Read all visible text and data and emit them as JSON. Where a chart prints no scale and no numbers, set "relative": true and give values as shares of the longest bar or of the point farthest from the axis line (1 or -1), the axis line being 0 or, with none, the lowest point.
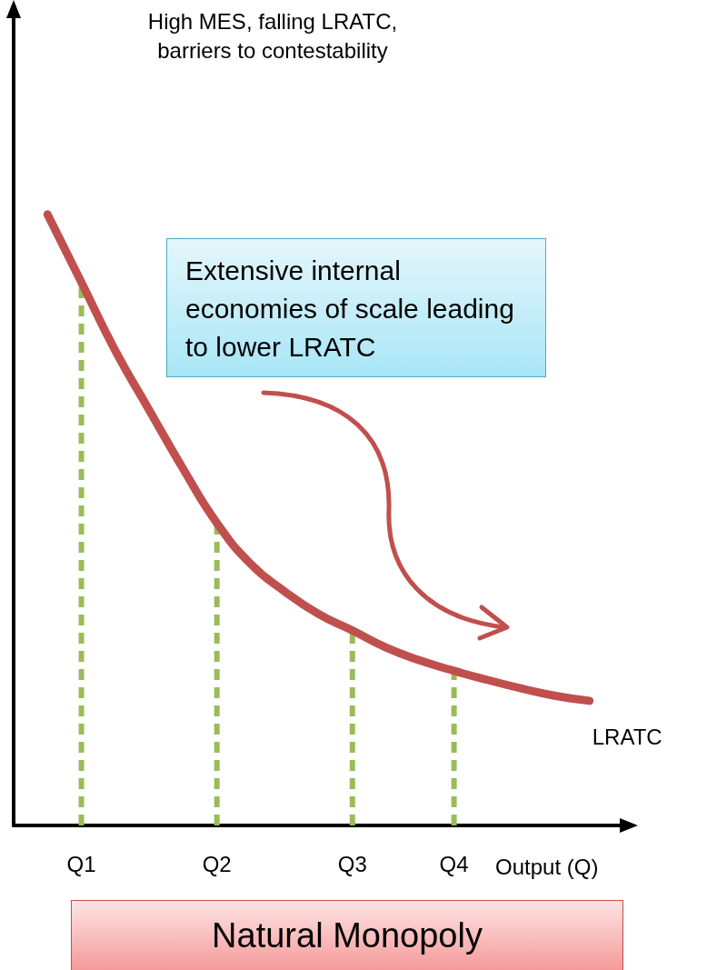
{
  "chart_data": {
    "type": "line",
    "title": "High MES, falling LRATC, barriers to contestability",
    "xlabel": "Output (Q)",
    "relative": true,
    "categories": [
      null,
      null,
      "Q1",
      null,
      null,
      null,
      "Q2",
      null,
      null,
      null,
      "Q3",
      null,
      null,
      "Q4",
      null,
      null,
      null,
      null,
      null
    ],
    "series": [
      {
        "name": "LRATC",
        "color": "#c0504d",
        "values": [
          null,
          1,
          0.889,
          0.777,
          0.68,
          0.584,
          0.495,
          0.428,
          0.383,
          0.346,
          0.319,
          0.291,
          0.27,
          0.253,
          0.238,
          0.224,
          0.212,
          0.204,
          null
        ]
      },
      {
        "color": "#9bbb59",
        "line_style": "dashed",
        "x": [
          "Q1",
          "Q1"
        ],
        "values": [
          0,
          0.889
        ]
      },
      {
        "color": "#9bbb59",
        "line_style": "dashed",
        "x": [
          "Q2",
          "Q2"
        ],
        "values": [
          0,
          0.495
        ]
      },
      {
        "color": "#9bbb59",
        "line_style": "dashed",
        "x": [
          "Q3",
          "Q3"
        ],
        "values": [
          0,
          0.319
        ]
      },
      {
        "color": "#9bbb59",
        "line_style": "dashed",
        "x": [
          "Q4",
          "Q4"
        ],
        "values": [
          0,
          0.253
        ]
      }
    ],
    "annotations": [
      "Extensive internal economies of scale leading to lower LRATC",
      "Natural Monopoly"
    ],
    "marker": "none"
  }
}
